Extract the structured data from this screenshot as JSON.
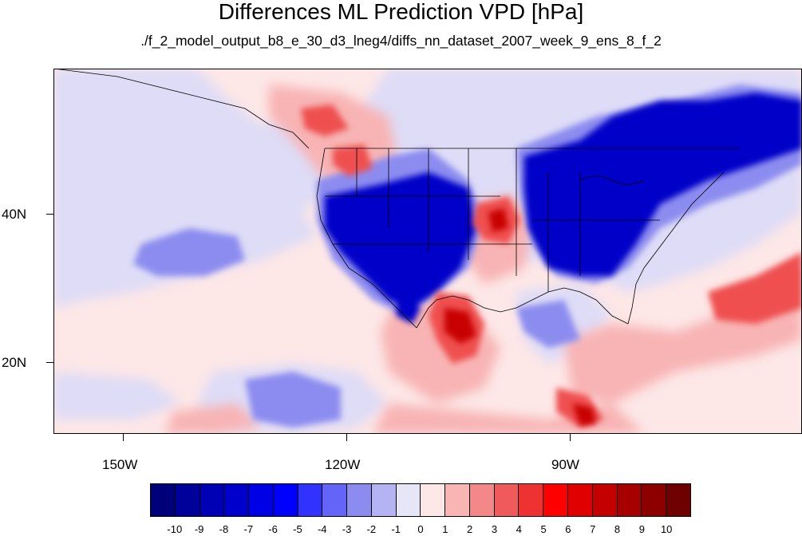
{
  "title": "Differences ML Prediction VPD [hPa]",
  "subtitle": "./f_2_model_output_b8_e_30_d3_lneg4/diffs_nn_dataset_2007_week_9_ens_8_f_2",
  "map": {
    "lon_labels": [
      "150W",
      "120W",
      "90W"
    ],
    "lat_labels": [
      "40N",
      "20N"
    ],
    "region": "North America, Pacific and Gulf of Mexico",
    "field": "VPD difference (ML prediction minus reference)",
    "colors": {
      "strong_negative": "#0000c8",
      "negative": "#5a5af0",
      "weak_negative": "#dedcf6",
      "neutral": "#fde7e7",
      "weak_positive": "#f8b4b4",
      "positive": "#ef5050",
      "strong_positive": "#c80000",
      "boundaries": "#000000"
    }
  },
  "colorbar": {
    "labels": [
      "-10",
      "-9",
      "-8",
      "-7",
      "-6",
      "-5",
      "-4",
      "-3",
      "-2",
      "-1",
      "0",
      "1",
      "2",
      "3",
      "4",
      "5",
      "6",
      "7",
      "8",
      "9",
      "10"
    ],
    "colors": [
      "#00007a",
      "#00009a",
      "#0000b4",
      "#0000cc",
      "#0000e6",
      "#0000ff",
      "#3232ff",
      "#6464f8",
      "#8c8cf0",
      "#b4b4f4",
      "#e6e6f8",
      "#fde7e7",
      "#f9b4b4",
      "#f48888",
      "#f05a5a",
      "#ee3232",
      "#ff0000",
      "#e00000",
      "#c40000",
      "#a60000",
      "#8c0000",
      "#6e0000"
    ]
  }
}
